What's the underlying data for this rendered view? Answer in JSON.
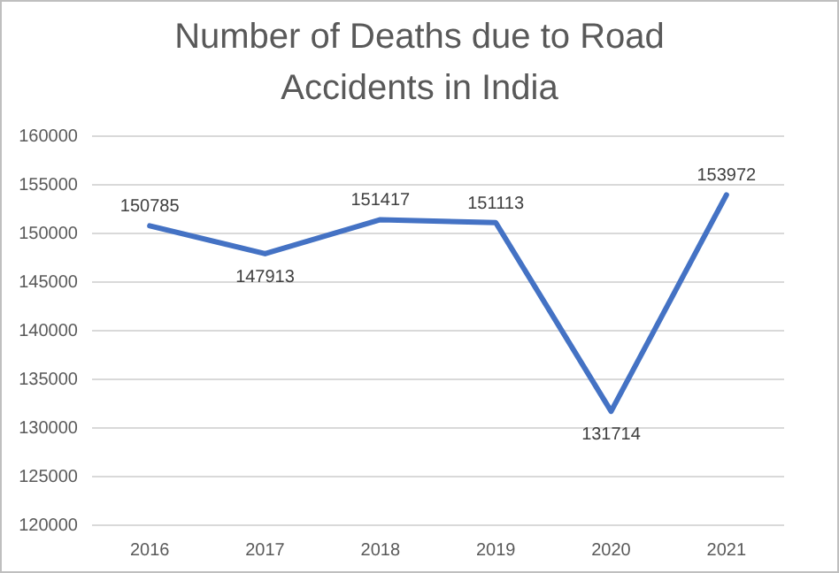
{
  "chart_data": {
    "type": "line",
    "title": "Number of Deaths due to Road Accidents in India",
    "categories": [
      "2016",
      "2017",
      "2018",
      "2019",
      "2020",
      "2021"
    ],
    "series": [
      {
        "color": "#4472c4",
        "values": [
          150785,
          147913,
          151417,
          151113,
          131714,
          153972
        ]
      }
    ],
    "ylim": [
      120000,
      160000
    ],
    "yticks": [
      120000,
      125000,
      130000,
      135000,
      140000,
      145000,
      150000,
      155000,
      160000
    ],
    "grid": "y",
    "data_labels": true,
    "marker": "none",
    "line_style": "solid"
  }
}
